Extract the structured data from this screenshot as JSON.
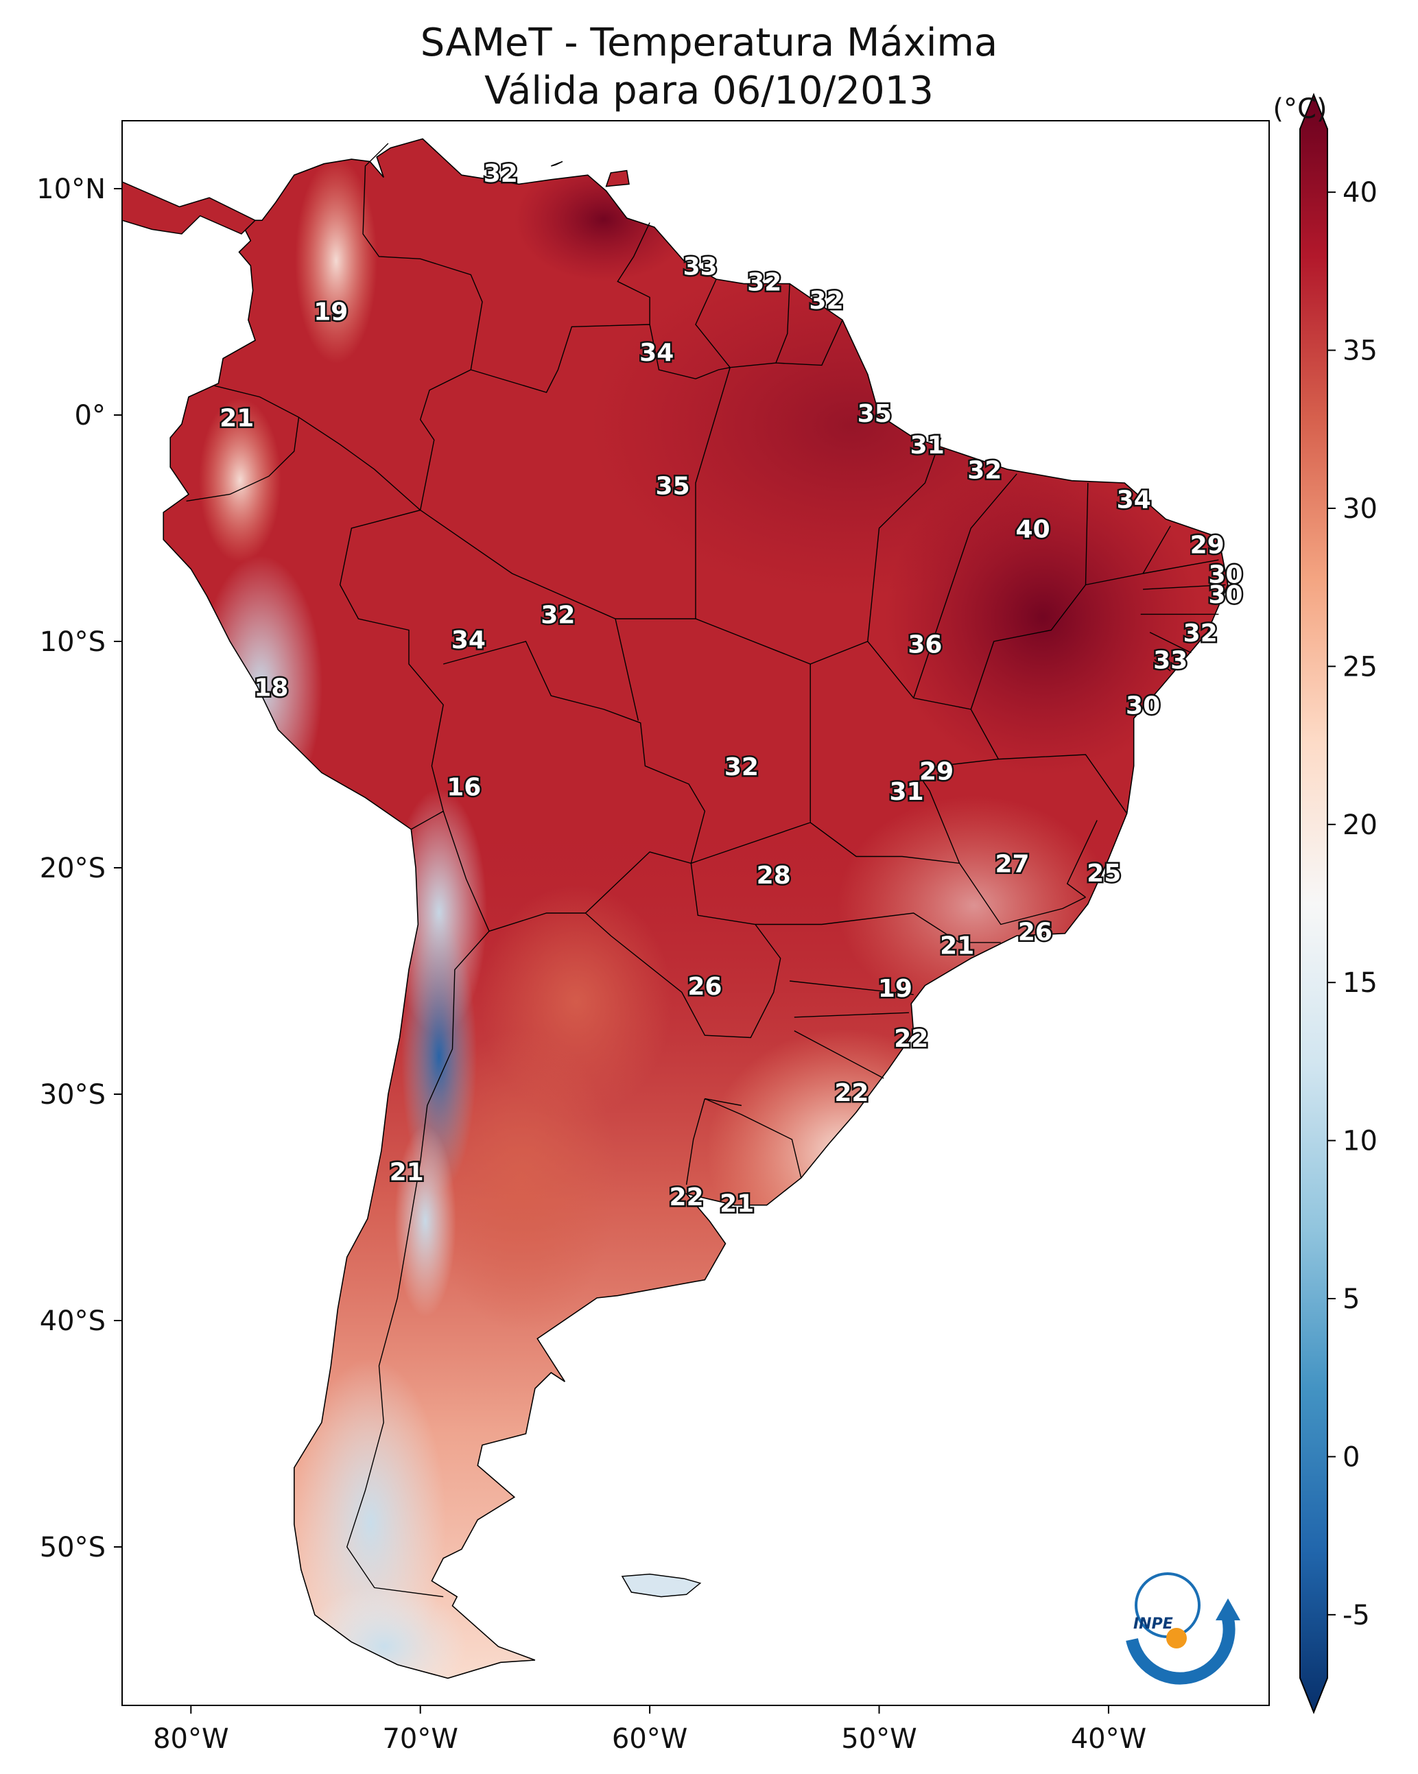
{
  "title": {
    "line1": "SAMeT - Temperatura Máxima",
    "line2": "Válida para 06/10/2013"
  },
  "chart_data": {
    "type": "heatmap",
    "lon_range": [
      -83,
      -33
    ],
    "lat_range": [
      -57,
      13
    ],
    "lon_ticks": [
      "80°W",
      "70°W",
      "60°W",
      "50°W",
      "40°W"
    ],
    "lat_ticks": [
      "10°N",
      "0°",
      "10°S",
      "20°S",
      "30°S",
      "40°S",
      "50°S"
    ],
    "colorbar": {
      "unit": "(°C)",
      "min": -7,
      "max": 42,
      "ticks": [
        "40",
        "35",
        "30",
        "25",
        "20",
        "15",
        "10",
        "5",
        "0",
        "-5"
      ],
      "colors": [
        "#08306b",
        "#2166ac",
        "#4393c3",
        "#92c5de",
        "#d1e5f0",
        "#f7f7f7",
        "#fddbc7",
        "#f4a582",
        "#d6604d",
        "#b2182b",
        "#67001f"
      ]
    },
    "point_labels": [
      {
        "lon": -66.5,
        "lat": 10.6,
        "value": "32"
      },
      {
        "lon": -73.9,
        "lat": 4.5,
        "value": "19"
      },
      {
        "lon": -57.8,
        "lat": 6.5,
        "value": "33"
      },
      {
        "lon": -55.0,
        "lat": 5.8,
        "value": "32"
      },
      {
        "lon": -52.3,
        "lat": 5.0,
        "value": "32"
      },
      {
        "lon": -59.7,
        "lat": 2.7,
        "value": "34"
      },
      {
        "lon": -78.0,
        "lat": -0.2,
        "value": "21"
      },
      {
        "lon": -50.2,
        "lat": 0.0,
        "value": "35"
      },
      {
        "lon": -47.9,
        "lat": -1.4,
        "value": "31"
      },
      {
        "lon": -45.4,
        "lat": -2.5,
        "value": "32"
      },
      {
        "lon": -38.9,
        "lat": -3.8,
        "value": "34"
      },
      {
        "lon": -59.0,
        "lat": -3.2,
        "value": "35"
      },
      {
        "lon": -43.3,
        "lat": -5.1,
        "value": "40"
      },
      {
        "lon": -35.7,
        "lat": -5.8,
        "value": "29"
      },
      {
        "lon": -34.9,
        "lat": -7.1,
        "value": "30"
      },
      {
        "lon": -34.9,
        "lat": -8.0,
        "value": "30"
      },
      {
        "lon": -36.0,
        "lat": -9.7,
        "value": "32"
      },
      {
        "lon": -64.0,
        "lat": -8.9,
        "value": "32"
      },
      {
        "lon": -67.9,
        "lat": -10.0,
        "value": "34"
      },
      {
        "lon": -48.0,
        "lat": -10.2,
        "value": "36"
      },
      {
        "lon": -37.3,
        "lat": -10.9,
        "value": "33"
      },
      {
        "lon": -76.5,
        "lat": -12.1,
        "value": "18"
      },
      {
        "lon": -38.5,
        "lat": -12.9,
        "value": "30"
      },
      {
        "lon": -68.1,
        "lat": -16.5,
        "value": "16"
      },
      {
        "lon": -56.0,
        "lat": -15.6,
        "value": "32"
      },
      {
        "lon": -47.5,
        "lat": -15.8,
        "value": "29"
      },
      {
        "lon": -48.8,
        "lat": -16.7,
        "value": "31"
      },
      {
        "lon": -44.2,
        "lat": -19.9,
        "value": "27"
      },
      {
        "lon": -40.2,
        "lat": -20.3,
        "value": "25"
      },
      {
        "lon": -54.6,
        "lat": -20.4,
        "value": "28"
      },
      {
        "lon": -43.2,
        "lat": -22.9,
        "value": "26"
      },
      {
        "lon": -46.6,
        "lat": -23.5,
        "value": "21"
      },
      {
        "lon": -57.6,
        "lat": -25.3,
        "value": "26"
      },
      {
        "lon": -49.3,
        "lat": -25.4,
        "value": "19"
      },
      {
        "lon": -48.6,
        "lat": -27.6,
        "value": "22"
      },
      {
        "lon": -51.2,
        "lat": -30.0,
        "value": "22"
      },
      {
        "lon": -70.6,
        "lat": -33.5,
        "value": "21"
      },
      {
        "lon": -58.4,
        "lat": -34.6,
        "value": "22"
      },
      {
        "lon": -56.2,
        "lat": -34.9,
        "value": "21"
      }
    ]
  },
  "logo": {
    "text": "INPE"
  }
}
